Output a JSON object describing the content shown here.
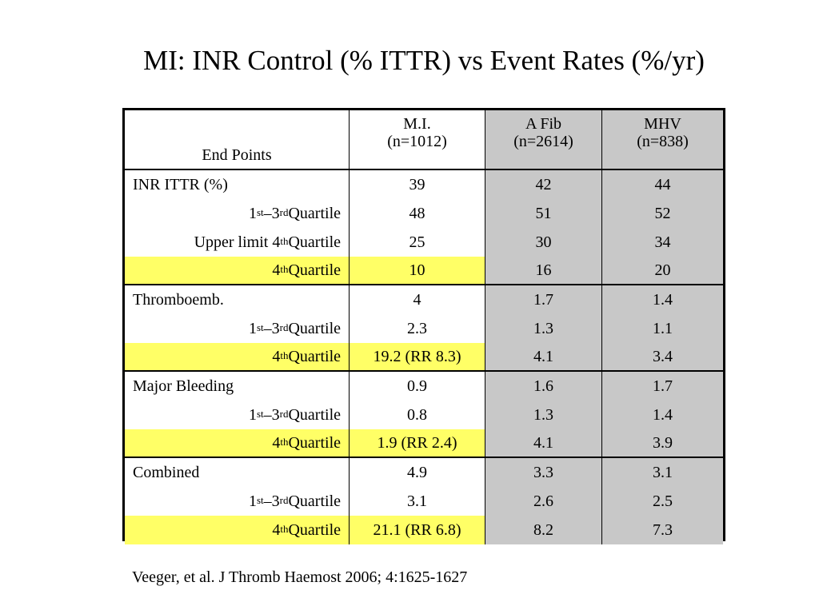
{
  "title": "MI: INR Control (% ITTR) vs Event Rates (%/yr)",
  "table": {
    "headers": {
      "end_points": "End Points",
      "mi": "M.I.",
      "mi_n": "(n=1012)",
      "afib": "A Fib",
      "afib_n": "(n=2614)",
      "mhv": "MHV",
      "mhv_n": "(n=838)"
    },
    "labels": {
      "inr_ittr": "INR ITTR (%)",
      "thromboemb": "Thromboemb.",
      "major_bleeding": "Major Bleeding",
      "combined": "Combined",
      "q1": "1",
      "q1_sup": "st",
      "dash": " – ",
      "q3": "3",
      "q3_sup": "rd",
      "quartile": " Quartile",
      "upper_prefix": "Upper limit 4",
      "q4_sup": "th",
      "q4": "4"
    },
    "rows": [
      {
        "mi": "39",
        "afib": "42",
        "mhv": "44"
      },
      {
        "mi": "48",
        "afib": "51",
        "mhv": "52"
      },
      {
        "mi": "25",
        "afib": "30",
        "mhv": "34"
      },
      {
        "mi": "10",
        "afib": "16",
        "mhv": "20"
      },
      {
        "mi": "4",
        "afib": "1.7",
        "mhv": "1.4"
      },
      {
        "mi": "2.3",
        "afib": "1.3",
        "mhv": "1.1"
      },
      {
        "mi": "19.2 (RR 8.3)",
        "afib": "4.1",
        "mhv": "3.4"
      },
      {
        "mi": "0.9",
        "afib": "1.6",
        "mhv": "1.7"
      },
      {
        "mi": "0.8",
        "afib": "1.3",
        "mhv": "1.4"
      },
      {
        "mi": "1.9 (RR 2.4)",
        "afib": "4.1",
        "mhv": "3.9"
      },
      {
        "mi": "4.9",
        "afib": "3.3",
        "mhv": "3.1"
      },
      {
        "mi": "3.1",
        "afib": "2.6",
        "mhv": "2.5"
      },
      {
        "mi": "21.1 (RR 6.8)",
        "afib": "8.2",
        "mhv": "7.3"
      }
    ]
  },
  "footnote": "Veeger, et al. J Thromb Haemost 2006; 4:1625-1627",
  "colors": {
    "highlight": "#ffff66",
    "shade": "#c8c8c8"
  }
}
